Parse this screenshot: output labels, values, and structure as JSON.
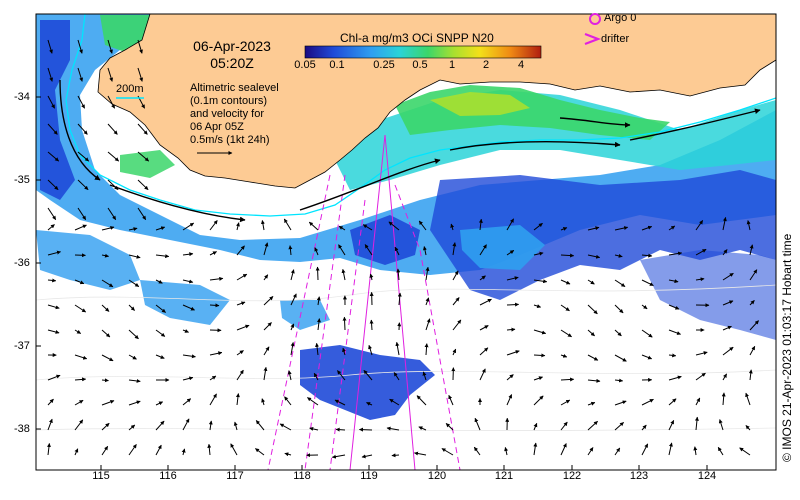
{
  "header": {
    "date": "06-Apr-2023",
    "time": "05:20Z"
  },
  "colorbar": {
    "title": "Chl-a mg/m3 OCi SNPP N20",
    "ticks": [
      "0.05",
      "0.1",
      "0.25",
      "0.5",
      "1",
      "2",
      "4"
    ]
  },
  "legend": {
    "contour_label": "200m",
    "sealevel_text": [
      "Altimetric sealevel",
      "(0.1m contours)",
      "and velocity for",
      "06 Apr 05Z",
      "0.5m/s (1kt 24h)"
    ],
    "argo_label": "Argo 0",
    "drifter_label": "drifter"
  },
  "axes": {
    "lat_labels": [
      "-34",
      "-35",
      "-36",
      "-37",
      "-38"
    ],
    "lon_labels": [
      "115",
      "116",
      "117",
      "118",
      "119",
      "120",
      "121",
      "122",
      "123",
      "124"
    ]
  },
  "copyright": "© IMOS 21-Apr-2023 01:03:17 Hobart time",
  "colors": {
    "land": "#fdcb94",
    "contour_200m": "#00e5ff",
    "track": "#e020e0",
    "colormap": [
      "#1a0a82",
      "#1f4ad8",
      "#2f9ef0",
      "#2ad3d8",
      "#3bd66a",
      "#a8e030",
      "#f3e019",
      "#f08a14",
      "#b01e10"
    ]
  }
}
